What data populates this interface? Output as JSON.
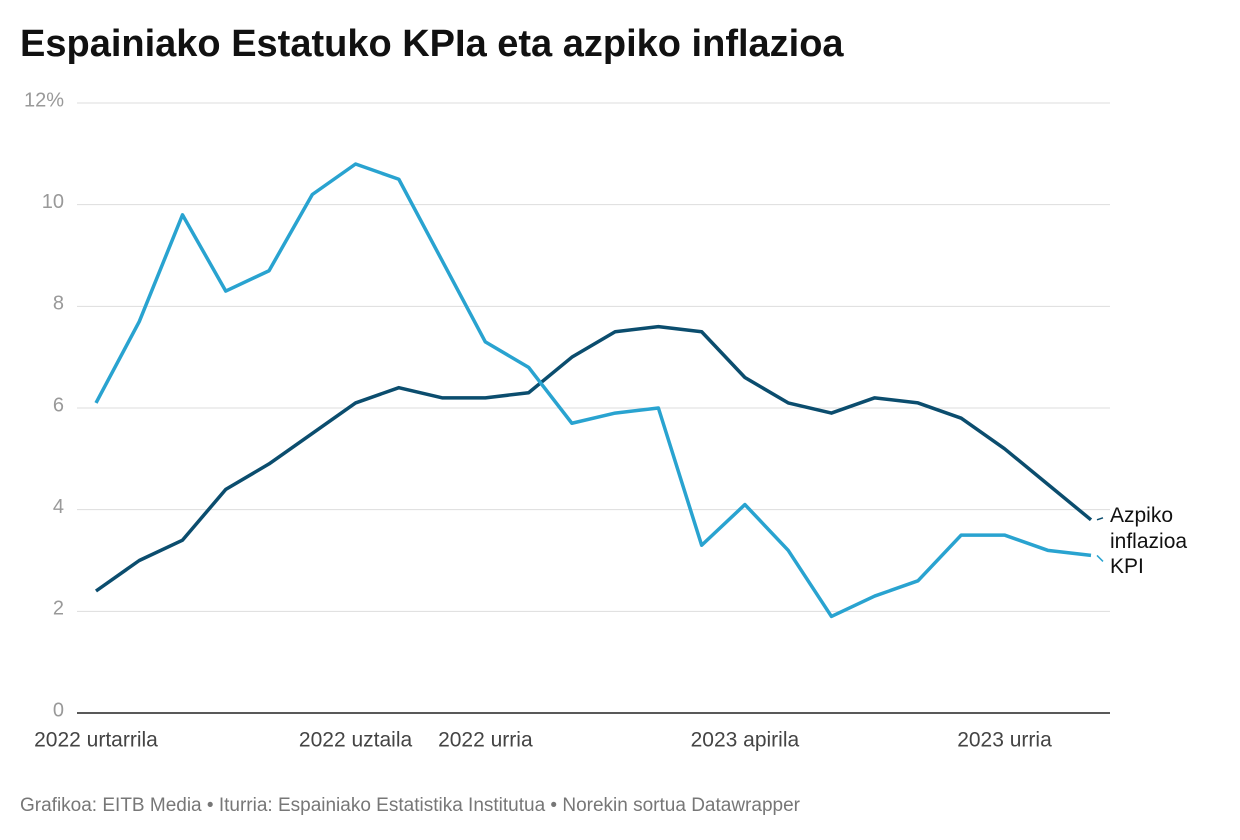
{
  "chart_data": {
    "type": "line",
    "title": "Espainiako Estatuko KPIa eta azpiko inflazioa",
    "source": "Grafikoa: EITB Media • Iturria: Espainiako Estatistika Institutua • Norekin sortua Datawrapper",
    "categories": [
      "2022 urtarrila",
      null,
      null,
      null,
      null,
      null,
      "2022 uztaila",
      null,
      null,
      "2022 urria",
      null,
      null,
      null,
      null,
      null,
      "2023 apirila",
      null,
      null,
      null,
      null,
      null,
      "2023 urria",
      null,
      null
    ],
    "series": [
      {
        "name": "Azpiko inflazioa",
        "color": "#0b4d6e",
        "values": [
          2.4,
          3.0,
          3.4,
          4.4,
          4.9,
          5.5,
          6.1,
          6.4,
          6.2,
          6.2,
          6.3,
          7.0,
          7.5,
          7.6,
          7.5,
          6.6,
          6.1,
          5.9,
          6.2,
          6.1,
          5.8,
          5.2,
          4.5,
          3.8
        ]
      },
      {
        "name": "KPI",
        "color": "#29a3d0",
        "values": [
          6.1,
          7.7,
          9.8,
          8.3,
          8.7,
          10.2,
          10.8,
          10.5,
          8.9,
          7.3,
          6.8,
          5.7,
          5.9,
          6.0,
          3.3,
          4.1,
          3.2,
          1.9,
          2.3,
          2.6,
          3.5,
          3.5,
          3.2,
          3.1
        ]
      }
    ],
    "ylim": [
      0,
      12
    ],
    "yticks": [
      0,
      2,
      4,
      6,
      8,
      10,
      {
        "value": 12,
        "label": "12%"
      }
    ],
    "grid": true
  }
}
